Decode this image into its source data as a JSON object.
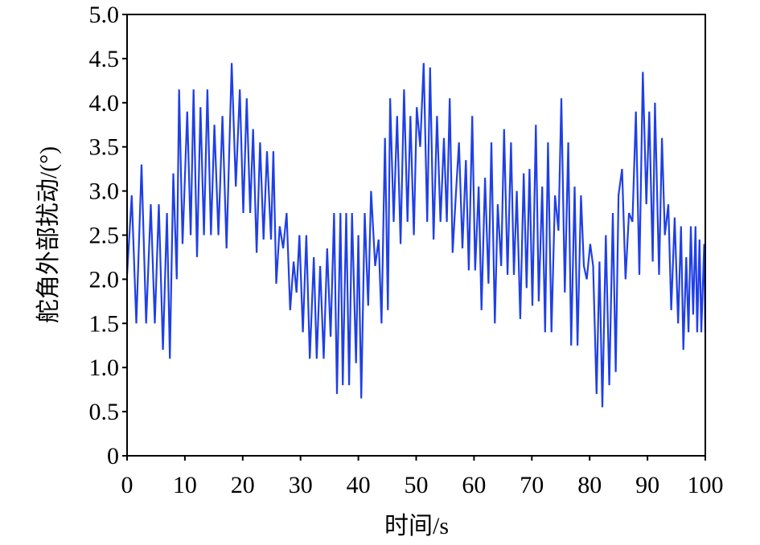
{
  "chart_data": {
    "type": "line",
    "xlabel": "时间/s",
    "ylabel": "舵角外部扰动/(°)",
    "xlim": [
      0,
      100
    ],
    "ylim": [
      0,
      5
    ],
    "xticks": [
      0,
      10,
      20,
      30,
      40,
      50,
      60,
      70,
      80,
      90,
      100
    ],
    "yticks": [
      0,
      0.5,
      {
        "value": 1,
        "label": "1.0"
      },
      1.5,
      {
        "value": 2,
        "label": "2.0"
      },
      2.5,
      {
        "value": 3,
        "label": "3.0"
      },
      3.5,
      {
        "value": 4,
        "label": "4.0"
      },
      4.5,
      {
        "value": 5,
        "label": "5.0"
      }
    ],
    "grid": false,
    "x": [
      0,
      0.8,
      1.6,
      2.5,
      3.3,
      4.1,
      4.8,
      5.5,
      6.2,
      6.9,
      7.4,
      8.0,
      8.6,
      9.0,
      9.6,
      10.4,
      11.0,
      11.5,
      12.1,
      12.7,
      13.3,
      13.9,
      14.5,
      15.1,
      15.8,
      16.5,
      17.2,
      18.1,
      18.8,
      19.5,
      20.1,
      20.7,
      21.3,
      21.8,
      22.4,
      23.0,
      23.6,
      24.2,
      24.9,
      25.3,
      25.8,
      26.4,
      27.0,
      27.6,
      28.2,
      28.8,
      29.3,
      29.8,
      30.4,
      31.0,
      31.6,
      32.3,
      32.8,
      33.4,
      34.0,
      34.6,
      35.2,
      35.8,
      36.3,
      36.9,
      37.3,
      37.9,
      38.4,
      38.9,
      39.6,
      40.0,
      40.5,
      41.1,
      41.7,
      42.2,
      42.9,
      43.5,
      44.0,
      44.6,
      45.1,
      45.5,
      46.1,
      46.7,
      47.3,
      47.9,
      48.5,
      49.0,
      49.6,
      50.1,
      50.7,
      51.3,
      51.9,
      52.4,
      53.0,
      53.6,
      54.2,
      54.8,
      55.3,
      55.8,
      56.3,
      56.9,
      57.4,
      58.0,
      58.6,
      59.1,
      59.7,
      60.2,
      60.8,
      61.3,
      61.9,
      62.5,
      63.0,
      63.6,
      64.1,
      64.7,
      65.2,
      65.8,
      66.4,
      66.9,
      67.4,
      68.0,
      68.6,
      69.1,
      69.6,
      70.1,
      70.7,
      71.2,
      71.8,
      72.3,
      72.8,
      73.4,
      74.0,
      74.6,
      75.1,
      75.7,
      76.3,
      76.8,
      77.4,
      77.9,
      78.5,
      79.0,
      79.5,
      80.1,
      80.6,
      81.2,
      81.7,
      82.2,
      82.8,
      83.4,
      84.0,
      84.5,
      85.0,
      85.6,
      86.2,
      86.8,
      87.4,
      88.0,
      88.6,
      89.2,
      89.8,
      90.3,
      90.9,
      91.3,
      92.0,
      92.5,
      93.0,
      93.6,
      94.1,
      94.7,
      95.3,
      95.8,
      96.2,
      96.7,
      97.1,
      97.5,
      97.9,
      98.3,
      98.6,
      99.0,
      99.3,
      99.8,
      100
    ],
    "series": [
      {
        "color": "#1f3fe6",
        "values": [
          2.05,
          2.95,
          1.5,
          3.3,
          1.5,
          2.85,
          1.5,
          2.85,
          1.2,
          2.75,
          1.1,
          3.2,
          2.0,
          4.15,
          2.4,
          3.9,
          2.5,
          4.15,
          2.25,
          3.95,
          2.5,
          4.15,
          2.5,
          3.75,
          2.5,
          3.85,
          2.35,
          4.45,
          3.05,
          4.15,
          2.75,
          4.05,
          2.75,
          3.7,
          2.3,
          3.55,
          2.45,
          3.45,
          2.45,
          3.45,
          1.95,
          2.6,
          2.35,
          2.75,
          1.65,
          2.2,
          1.85,
          2.5,
          1.4,
          2.5,
          1.1,
          2.25,
          1.1,
          2.15,
          1.1,
          2.35,
          1.35,
          2.75,
          0.7,
          2.75,
          0.8,
          2.75,
          0.8,
          2.75,
          1.05,
          2.5,
          0.65,
          2.75,
          1.7,
          3.0,
          2.15,
          2.45,
          1.5,
          3.6,
          1.65,
          4.05,
          2.65,
          3.85,
          2.4,
          4.15,
          2.65,
          3.85,
          2.5,
          3.95,
          3.5,
          4.45,
          2.65,
          4.4,
          2.45,
          3.85,
          2.65,
          3.6,
          2.65,
          4.05,
          2.3,
          3.0,
          3.55,
          2.35,
          3.35,
          2.1,
          3.85,
          2.1,
          3.05,
          1.65,
          3.15,
          1.95,
          3.55,
          1.5,
          2.85,
          2.15,
          3.7,
          2.05,
          3.55,
          2.05,
          3.0,
          1.55,
          3.2,
          1.9,
          3.25,
          1.7,
          3.75,
          1.75,
          3.05,
          1.4,
          3.55,
          1.4,
          2.95,
          2.55,
          4.05,
          1.85,
          3.55,
          1.25,
          3.05,
          1.25,
          2.95,
          2.15,
          2.0,
          2.4,
          2.15,
          0.7,
          2.2,
          0.55,
          2.5,
          0.8,
          2.75,
          0.95,
          2.95,
          3.25,
          2.0,
          2.75,
          2.65,
          3.9,
          2.05,
          4.35,
          2.85,
          3.9,
          2.2,
          4.0,
          2.05,
          3.6,
          2.5,
          2.85,
          1.65,
          2.7,
          1.5,
          2.6,
          1.2,
          2.25,
          1.4,
          2.6,
          1.6,
          2.6,
          1.4,
          2.45,
          1.4,
          2.4,
          1.4
        ]
      }
    ]
  }
}
